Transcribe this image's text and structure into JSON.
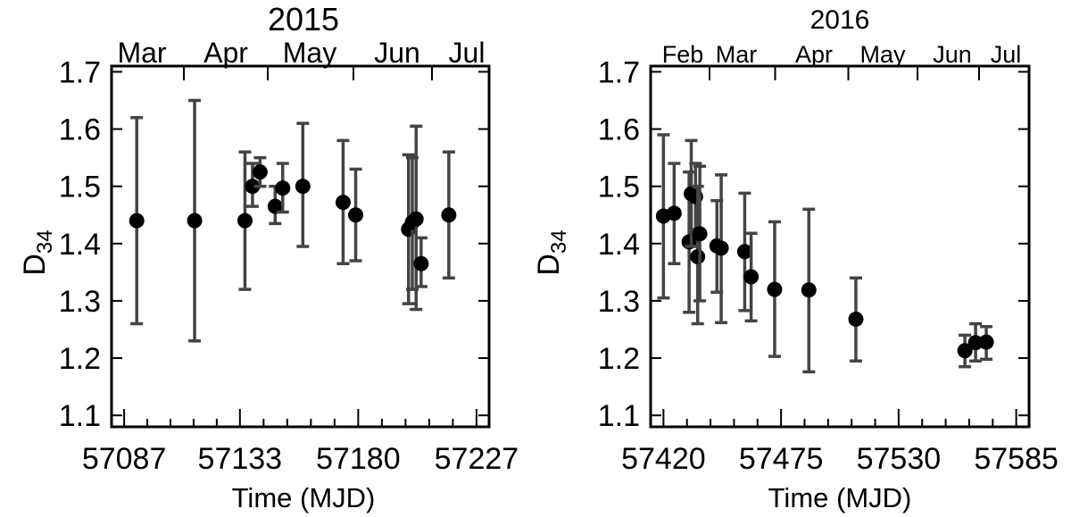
{
  "chart_data": [
    {
      "type": "scatter",
      "title": "2015",
      "xlabel": "Time (MJD)",
      "ylabel": "D",
      "ylabel_sub": "34",
      "xlim": [
        57082,
        57232
      ],
      "ylim": [
        1.08,
        1.71
      ],
      "x_ticks": [
        "57087",
        "57133",
        "57180",
        "57227"
      ],
      "y_ticks": [
        "1.1",
        "1.2",
        "1.3",
        "1.4",
        "1.5",
        "1.6",
        "1.7"
      ],
      "top_months": [
        "Mar",
        "Apr",
        "May",
        "Jun",
        "Jul"
      ],
      "points": [
        {
          "x": 57092,
          "y": 1.44,
          "lo": 1.26,
          "hi": 1.62
        },
        {
          "x": 57115,
          "y": 1.44,
          "lo": 1.23,
          "hi": 1.65
        },
        {
          "x": 57135,
          "y": 1.44,
          "lo": 1.32,
          "hi": 1.56
        },
        {
          "x": 57138,
          "y": 1.5,
          "lo": 1.465,
          "hi": 1.54
        },
        {
          "x": 57141,
          "y": 1.525,
          "lo": 1.5,
          "hi": 1.55
        },
        {
          "x": 57147,
          "y": 1.465,
          "lo": 1.435,
          "hi": 1.5
        },
        {
          "x": 57150,
          "y": 1.497,
          "lo": 1.455,
          "hi": 1.54
        },
        {
          "x": 57158,
          "y": 1.5,
          "lo": 1.395,
          "hi": 1.61
        },
        {
          "x": 57174,
          "y": 1.472,
          "lo": 1.365,
          "hi": 1.58
        },
        {
          "x": 57179,
          "y": 1.45,
          "lo": 1.37,
          "hi": 1.53
        },
        {
          "x": 57200,
          "y": 1.425,
          "lo": 1.295,
          "hi": 1.555
        },
        {
          "x": 57201.5,
          "y": 1.437,
          "lo": 1.32,
          "hi": 1.55
        },
        {
          "x": 57203,
          "y": 1.443,
          "lo": 1.285,
          "hi": 1.605
        },
        {
          "x": 57205,
          "y": 1.365,
          "lo": 1.325,
          "hi": 1.41
        },
        {
          "x": 57216,
          "y": 1.45,
          "lo": 1.34,
          "hi": 1.56
        }
      ]
    },
    {
      "type": "scatter",
      "title": "2016",
      "xlabel": "Time (MJD)",
      "ylabel": "D",
      "ylabel_sub": "34",
      "xlim": [
        57414,
        57591
      ],
      "ylim": [
        1.08,
        1.71
      ],
      "x_ticks": [
        "57420",
        "57475",
        "57530",
        "57585"
      ],
      "y_ticks": [
        "1.1",
        "1.2",
        "1.3",
        "1.4",
        "1.5",
        "1.6",
        "1.7"
      ],
      "top_months": [
        "Feb",
        "Mar",
        "Apr",
        "May",
        "Jun",
        "Jul"
      ],
      "points": [
        {
          "x": 57420,
          "y": 1.448,
          "lo": 1.305,
          "hi": 1.59
        },
        {
          "x": 57425,
          "y": 1.453,
          "lo": 1.365,
          "hi": 1.54
        },
        {
          "x": 57432,
          "y": 1.403,
          "lo": 1.28,
          "hi": 1.525
        },
        {
          "x": 57433,
          "y": 1.487,
          "lo": 1.395,
          "hi": 1.58
        },
        {
          "x": 57435,
          "y": 1.482,
          "lo": 1.425,
          "hi": 1.54
        },
        {
          "x": 57436,
          "y": 1.377,
          "lo": 1.26,
          "hi": 1.5
        },
        {
          "x": 57437,
          "y": 1.417,
          "lo": 1.3,
          "hi": 1.535
        },
        {
          "x": 57445,
          "y": 1.396,
          "lo": 1.315,
          "hi": 1.475
        },
        {
          "x": 57447,
          "y": 1.392,
          "lo": 1.262,
          "hi": 1.52
        },
        {
          "x": 57458,
          "y": 1.386,
          "lo": 1.283,
          "hi": 1.488
        },
        {
          "x": 57461,
          "y": 1.342,
          "lo": 1.265,
          "hi": 1.418
        },
        {
          "x": 57472,
          "y": 1.32,
          "lo": 1.203,
          "hi": 1.438
        },
        {
          "x": 57488,
          "y": 1.319,
          "lo": 1.176,
          "hi": 1.46
        },
        {
          "x": 57510,
          "y": 1.268,
          "lo": 1.195,
          "hi": 1.34
        },
        {
          "x": 57561,
          "y": 1.213,
          "lo": 1.185,
          "hi": 1.24
        },
        {
          "x": 57566,
          "y": 1.227,
          "lo": 1.195,
          "hi": 1.26
        },
        {
          "x": 57571,
          "y": 1.228,
          "lo": 1.198,
          "hi": 1.255
        }
      ]
    }
  ]
}
